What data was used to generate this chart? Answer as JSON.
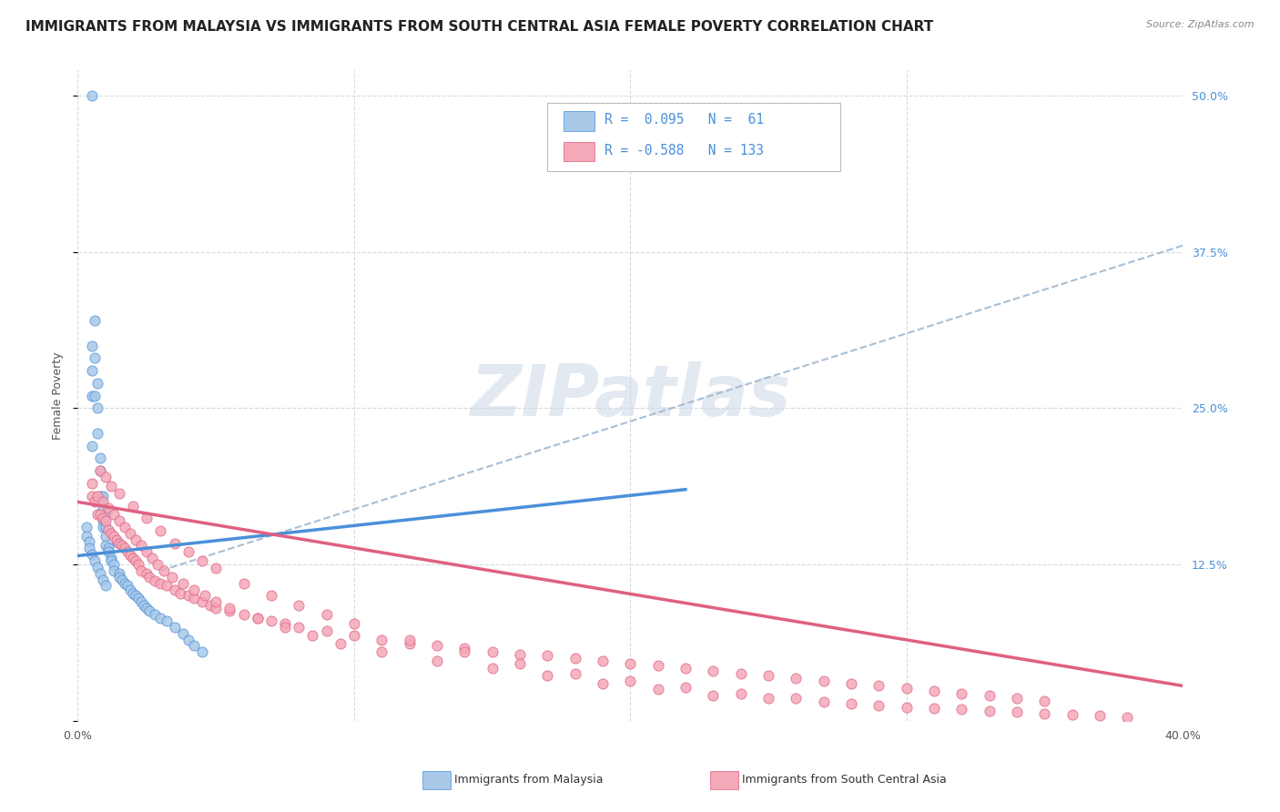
{
  "title": "IMMIGRANTS FROM MALAYSIA VS IMMIGRANTS FROM SOUTH CENTRAL ASIA FEMALE POVERTY CORRELATION CHART",
  "source": "Source: ZipAtlas.com",
  "ylabel": "Female Poverty",
  "right_yticks": [
    0.0,
    0.125,
    0.25,
    0.375,
    0.5
  ],
  "right_ytick_labels": [
    "",
    "12.5%",
    "25.0%",
    "37.5%",
    "50.0%"
  ],
  "xlim": [
    0.0,
    0.4
  ],
  "ylim": [
    0.0,
    0.52
  ],
  "watermark": "ZIPatlas",
  "color_malaysia": "#a8c8e8",
  "color_sca": "#f4a8b8",
  "line_color_malaysia": "#4a90d9",
  "line_color_sca": "#e06080",
  "dashed_line_color": "#a0b8d0",
  "malaysia_scatter_x": [
    0.005,
    0.005,
    0.005,
    0.005,
    0.005,
    0.006,
    0.006,
    0.006,
    0.007,
    0.007,
    0.007,
    0.008,
    0.008,
    0.008,
    0.009,
    0.009,
    0.009,
    0.009,
    0.01,
    0.01,
    0.01,
    0.01,
    0.011,
    0.011,
    0.012,
    0.012,
    0.013,
    0.013,
    0.014,
    0.015,
    0.015,
    0.016,
    0.017,
    0.018,
    0.019,
    0.02,
    0.021,
    0.022,
    0.023,
    0.024,
    0.025,
    0.026,
    0.028,
    0.03,
    0.032,
    0.035,
    0.038,
    0.04,
    0.042,
    0.045,
    0.003,
    0.003,
    0.004,
    0.004,
    0.005,
    0.006,
    0.007,
    0.008,
    0.009,
    0.01
  ],
  "malaysia_scatter_y": [
    0.5,
    0.3,
    0.28,
    0.26,
    0.22,
    0.32,
    0.29,
    0.26,
    0.27,
    0.25,
    0.23,
    0.21,
    0.2,
    0.18,
    0.18,
    0.17,
    0.16,
    0.155,
    0.165,
    0.155,
    0.148,
    0.14,
    0.138,
    0.135,
    0.13,
    0.128,
    0.125,
    0.12,
    0.143,
    0.118,
    0.115,
    0.113,
    0.11,
    0.108,
    0.105,
    0.102,
    0.1,
    0.098,
    0.095,
    0.092,
    0.09,
    0.088,
    0.085,
    0.082,
    0.08,
    0.075,
    0.07,
    0.065,
    0.06,
    0.055,
    0.155,
    0.148,
    0.143,
    0.138,
    0.133,
    0.128,
    0.123,
    0.118,
    0.113,
    0.108
  ],
  "sca_scatter_x": [
    0.005,
    0.006,
    0.007,
    0.008,
    0.009,
    0.01,
    0.011,
    0.012,
    0.013,
    0.014,
    0.015,
    0.016,
    0.017,
    0.018,
    0.019,
    0.02,
    0.021,
    0.022,
    0.023,
    0.025,
    0.026,
    0.028,
    0.03,
    0.032,
    0.035,
    0.037,
    0.04,
    0.042,
    0.045,
    0.048,
    0.05,
    0.055,
    0.06,
    0.065,
    0.07,
    0.075,
    0.08,
    0.09,
    0.1,
    0.11,
    0.12,
    0.13,
    0.14,
    0.15,
    0.16,
    0.17,
    0.18,
    0.19,
    0.2,
    0.21,
    0.22,
    0.23,
    0.24,
    0.25,
    0.26,
    0.27,
    0.28,
    0.29,
    0.3,
    0.31,
    0.32,
    0.33,
    0.34,
    0.35,
    0.005,
    0.007,
    0.009,
    0.011,
    0.013,
    0.015,
    0.017,
    0.019,
    0.021,
    0.023,
    0.025,
    0.027,
    0.029,
    0.031,
    0.034,
    0.038,
    0.042,
    0.046,
    0.05,
    0.055,
    0.065,
    0.075,
    0.085,
    0.095,
    0.11,
    0.13,
    0.15,
    0.17,
    0.19,
    0.21,
    0.23,
    0.25,
    0.27,
    0.29,
    0.31,
    0.33,
    0.35,
    0.37,
    0.008,
    0.01,
    0.012,
    0.015,
    0.02,
    0.025,
    0.03,
    0.035,
    0.04,
    0.045,
    0.05,
    0.06,
    0.07,
    0.08,
    0.09,
    0.1,
    0.12,
    0.14,
    0.16,
    0.18,
    0.2,
    0.22,
    0.24,
    0.26,
    0.28,
    0.3,
    0.32,
    0.34,
    0.36,
    0.38
  ],
  "sca_scatter_y": [
    0.18,
    0.175,
    0.165,
    0.165,
    0.162,
    0.16,
    0.153,
    0.15,
    0.148,
    0.145,
    0.142,
    0.14,
    0.138,
    0.135,
    0.132,
    0.13,
    0.128,
    0.125,
    0.12,
    0.118,
    0.115,
    0.112,
    0.11,
    0.108,
    0.105,
    0.102,
    0.1,
    0.098,
    0.095,
    0.092,
    0.09,
    0.088,
    0.085,
    0.082,
    0.08,
    0.078,
    0.075,
    0.072,
    0.068,
    0.065,
    0.062,
    0.06,
    0.058,
    0.055,
    0.053,
    0.052,
    0.05,
    0.048,
    0.046,
    0.044,
    0.042,
    0.04,
    0.038,
    0.036,
    0.034,
    0.032,
    0.03,
    0.028,
    0.026,
    0.024,
    0.022,
    0.02,
    0.018,
    0.016,
    0.19,
    0.18,
    0.175,
    0.17,
    0.165,
    0.16,
    0.155,
    0.15,
    0.145,
    0.14,
    0.135,
    0.13,
    0.125,
    0.12,
    0.115,
    0.11,
    0.105,
    0.1,
    0.095,
    0.09,
    0.082,
    0.075,
    0.068,
    0.062,
    0.055,
    0.048,
    0.042,
    0.036,
    0.03,
    0.025,
    0.02,
    0.018,
    0.015,
    0.012,
    0.01,
    0.008,
    0.006,
    0.004,
    0.2,
    0.195,
    0.188,
    0.182,
    0.172,
    0.162,
    0.152,
    0.142,
    0.135,
    0.128,
    0.122,
    0.11,
    0.1,
    0.092,
    0.085,
    0.078,
    0.065,
    0.055,
    0.046,
    0.038,
    0.032,
    0.027,
    0.022,
    0.018,
    0.014,
    0.011,
    0.009,
    0.007,
    0.005,
    0.003
  ],
  "malaysia_trendline_x": [
    0.0,
    0.22
  ],
  "malaysia_trendline_y": [
    0.132,
    0.185
  ],
  "sca_trendline_x": [
    0.0,
    0.4
  ],
  "sca_trendline_y": [
    0.175,
    0.028
  ],
  "dashed_trendline_x": [
    0.03,
    0.4
  ],
  "dashed_trendline_y": [
    0.12,
    0.38
  ],
  "background_color": "#ffffff",
  "grid_color": "#ccd8e0",
  "title_fontsize": 11,
  "axis_fontsize": 9
}
